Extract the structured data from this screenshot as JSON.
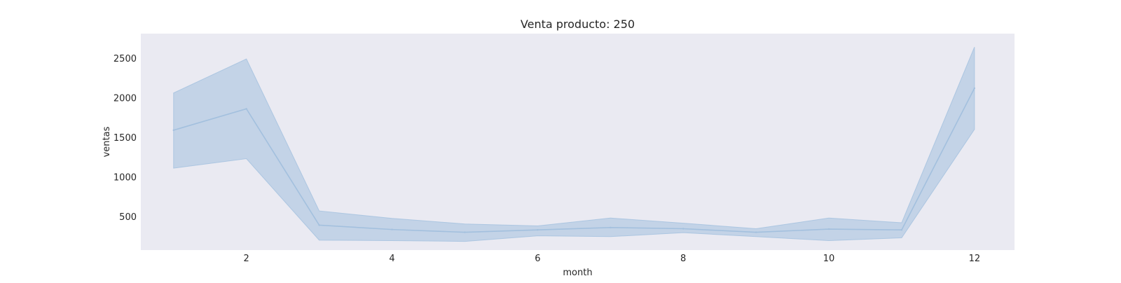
{
  "chart_data": {
    "type": "line",
    "title": "Venta producto: 250",
    "xlabel": "month",
    "ylabel": "ventas",
    "x": [
      1,
      2,
      3,
      4,
      5,
      6,
      7,
      8,
      9,
      10,
      11,
      12
    ],
    "xticks": [
      2,
      4,
      6,
      8,
      10,
      12
    ],
    "xtick_labels": [
      "2",
      "4",
      "6",
      "8",
      "10",
      "12"
    ],
    "yticks": [
      500,
      1000,
      1500,
      2000,
      2500
    ],
    "ytick_labels": [
      "500",
      "1000",
      "1500",
      "2000",
      "2500"
    ],
    "xlim": [
      0.55,
      12.55
    ],
    "ylim": [
      75,
      2810
    ],
    "grid": false,
    "series": [
      {
        "values": [
          1590,
          1860,
          390,
          335,
          300,
          330,
          360,
          345,
          300,
          340,
          330,
          2120
        ],
        "ci_lower": [
          1110,
          1230,
          200,
          195,
          185,
          255,
          245,
          295,
          245,
          195,
          230,
          1600
        ],
        "ci_upper": [
          2060,
          2490,
          570,
          475,
          405,
          380,
          480,
          415,
          345,
          480,
          420,
          2640
        ]
      }
    ],
    "colors": {
      "plot_background": "#eaeaf2",
      "line": "#a3c0de",
      "band": "#a3c0de",
      "text": "#262626"
    }
  }
}
